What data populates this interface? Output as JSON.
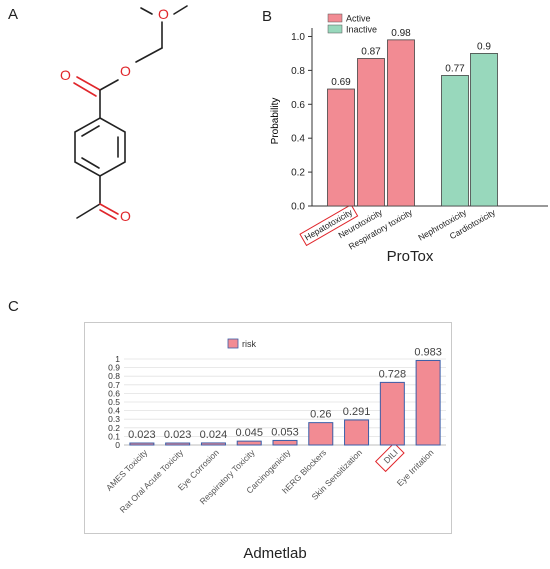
{
  "panels": {
    "a": {
      "label": "A"
    },
    "b": {
      "label": "B",
      "caption": "ProTox"
    },
    "c": {
      "label": "C",
      "caption": "Admetlab"
    }
  },
  "molecule": {
    "atoms": {
      "o1": "O",
      "o2": "O",
      "o3": "O",
      "o4": "O"
    },
    "colors": {
      "bond": "#222222",
      "oxygen": "#e0262b"
    }
  },
  "chart_data": [
    {
      "type": "bar",
      "ylabel": "Probability",
      "ylim": [
        0,
        1.05
      ],
      "yticks": [
        "0.0",
        "0.2",
        "0.4",
        "0.6",
        "0.8",
        "1.0"
      ],
      "grid": false,
      "legend": {
        "placement": "top-left",
        "entries": [
          "Active",
          "Inactive"
        ]
      },
      "categories": [
        "Hepatotoxicity",
        "Neurotoxicity",
        "Respiratory toxicity",
        "Nephrotoxicity",
        "Cardiotoxicity"
      ],
      "values": [
        0.69,
        0.87,
        0.98,
        0.77,
        0.9
      ],
      "value_labels": [
        "0.69",
        "0.87",
        "0.98",
        "0.77",
        "0.9"
      ],
      "groups": [
        "Active",
        "Active",
        "Active",
        "Inactive",
        "Inactive"
      ],
      "colors": {
        "Active": "#f28b93",
        "Inactive": "#98d8bc"
      },
      "highlight": "Hepatotoxicity"
    },
    {
      "type": "bar",
      "ylim": [
        0,
        1
      ],
      "yticks": [
        "0",
        "0.1",
        "0.2",
        "0.3",
        "0.4",
        "0.5",
        "0.6",
        "0.7",
        "0.8",
        "0.9",
        "1"
      ],
      "grid": true,
      "legend": {
        "placement": "top-left",
        "entries": [
          "risk"
        ]
      },
      "categories": [
        "AMES Toxicity",
        "Rat Oral Acute Toxicity",
        "Eye Corrosion",
        "Respiratory Toxicity",
        "Carcinogenicity",
        "hERG Blockers",
        "Skin Sensitization",
        "DILI",
        "Eye Irritation"
      ],
      "values": [
        0.023,
        0.023,
        0.024,
        0.045,
        0.053,
        0.26,
        0.291,
        0.728,
        0.983
      ],
      "value_labels": [
        "0.023",
        "0.023",
        "0.024",
        "0.045",
        "0.053",
        "0.26",
        "0.291",
        "0.728",
        "0.983"
      ],
      "colors": {
        "bar": "#f28b93",
        "edge": "#3a5ea8"
      },
      "highlight": "DILI"
    }
  ]
}
